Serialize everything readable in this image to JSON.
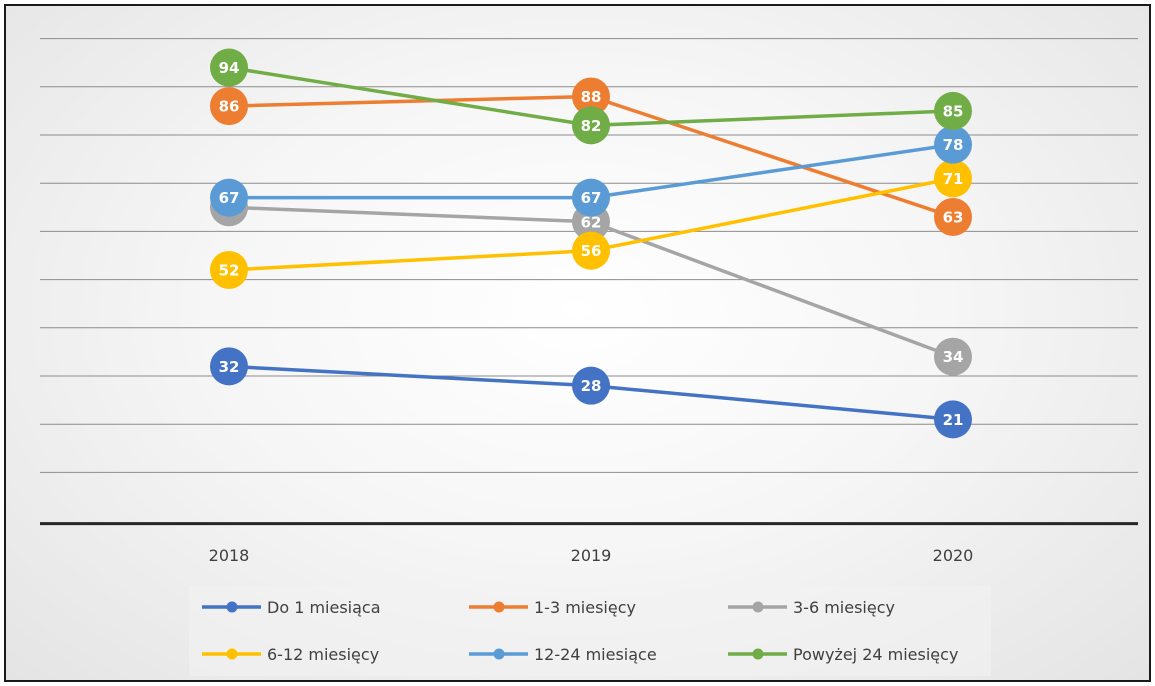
{
  "chart_data": {
    "type": "line",
    "title": "",
    "xlabel": "",
    "ylabel": "",
    "categories": [
      "2018",
      "2019",
      "2020"
    ],
    "ylim": [
      0,
      100
    ],
    "grid": "horizontal",
    "legend_position": "bottom",
    "series": [
      {
        "name": "Do 1 miesiąca",
        "color": "#4472C4",
        "values": [
          32,
          28,
          21
        ]
      },
      {
        "name": "1-3 miesięcy",
        "color": "#ED7D31",
        "values": [
          86,
          88,
          63
        ]
      },
      {
        "name": "3-6 miesięcy",
        "color": "#A5A5A5",
        "values": [
          65,
          62,
          34
        ]
      },
      {
        "name": "6-12 miesięcy",
        "color": "#FFC000",
        "values": [
          52,
          56,
          71
        ]
      },
      {
        "name": "12-24 miesiące",
        "color": "#5B9BD5",
        "values": [
          67,
          67,
          78
        ]
      },
      {
        "name": "Powyżej 24 miesięcy",
        "color": "#70AD47",
        "values": [
          94,
          82,
          85
        ]
      }
    ]
  }
}
